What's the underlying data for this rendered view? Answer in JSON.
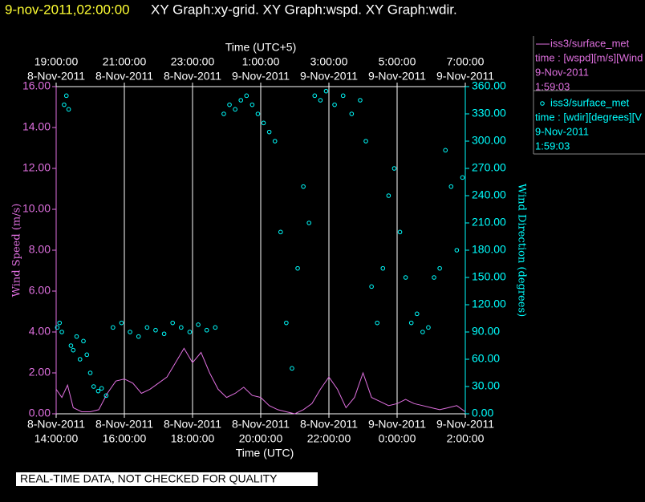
{
  "header": {
    "timestamp": "9-nov-2011,02:00:00",
    "title": "XY Graph:xy-grid.  XY Graph:wspd.  XY Graph:wdir."
  },
  "footer": "REAL-TIME DATA, NOT CHECKED FOR QUALITY",
  "chart_data": {
    "type": "line-scatter",
    "xlabel": "Time (UTC)",
    "x2label": "Time (UTC+5)",
    "ylabel": "Wind Speed (m/s)",
    "y2label": "Wind Direction (degrees)",
    "xlim": [
      "2011-11-08T14:00",
      "2011-11-09T02:00"
    ],
    "xticks": [
      {
        "value": "2011-11-08T14:00",
        "label": [
          "8-Nov-2011",
          "14:00:00"
        ]
      },
      {
        "value": "2011-11-08T16:00",
        "label": [
          "8-Nov-2011",
          "16:00:00"
        ]
      },
      {
        "value": "2011-11-08T18:00",
        "label": [
          "8-Nov-2011",
          "18:00:00"
        ]
      },
      {
        "value": "2011-11-08T20:00",
        "label": [
          "8-Nov-2011",
          "20:00:00"
        ]
      },
      {
        "value": "2011-11-08T22:00",
        "label": [
          "8-Nov-2011",
          "22:00:00"
        ]
      },
      {
        "value": "2011-11-09T00:00",
        "label": [
          "9-Nov-2011",
          "0:00:00"
        ]
      },
      {
        "value": "2011-11-09T02:00",
        "label": [
          "9-Nov-2011",
          "2:00:00"
        ]
      }
    ],
    "x2ticks": [
      {
        "value": "2011-11-08T14:00",
        "label": [
          "19:00:00",
          "8-Nov-2011"
        ]
      },
      {
        "value": "2011-11-08T16:00",
        "label": [
          "21:00:00",
          "8-Nov-2011"
        ]
      },
      {
        "value": "2011-11-08T18:00",
        "label": [
          "23:00:00",
          "8-Nov-2011"
        ]
      },
      {
        "value": "2011-11-08T20:00",
        "label": [
          "1:00:00",
          "9-Nov-2011"
        ]
      },
      {
        "value": "2011-11-08T22:00",
        "label": [
          "3:00:00",
          "9-Nov-2011"
        ]
      },
      {
        "value": "2011-11-09T00:00",
        "label": [
          "5:00:00",
          "9-Nov-2011"
        ]
      },
      {
        "value": "2011-11-09T02:00",
        "label": [
          "7:00:00",
          "9-Nov-2011"
        ]
      }
    ],
    "ylim": [
      0,
      16
    ],
    "yticks": [
      {
        "value": 0,
        "label": "0.00"
      },
      {
        "value": 2,
        "label": "2.00"
      },
      {
        "value": 4,
        "label": "4.00"
      },
      {
        "value": 6,
        "label": "6.00"
      },
      {
        "value": 8,
        "label": "8.00"
      },
      {
        "value": 10,
        "label": "10.00"
      },
      {
        "value": 12,
        "label": "12.00"
      },
      {
        "value": 14,
        "label": "14.00"
      },
      {
        "value": 16,
        "label": "16.00"
      }
    ],
    "y2lim": [
      0,
      360
    ],
    "y2ticks": [
      {
        "value": 0,
        "label": "0.00"
      },
      {
        "value": 30,
        "label": "30.00"
      },
      {
        "value": 60,
        "label": "60.00"
      },
      {
        "value": 90,
        "label": "90.00"
      },
      {
        "value": 120,
        "label": "120.00"
      },
      {
        "value": 150,
        "label": "150.00"
      },
      {
        "value": 180,
        "label": "180.00"
      },
      {
        "value": 210,
        "label": "210.00"
      },
      {
        "value": 240,
        "label": "240.00"
      },
      {
        "value": 270,
        "label": "270.00"
      },
      {
        "value": 300,
        "label": "300.00"
      },
      {
        "value": 330,
        "label": "330.00"
      },
      {
        "value": 360,
        "label": "360.00"
      }
    ],
    "series": [
      {
        "name": "iss3/surface_met",
        "legend_lines": [
          "time : [wspd][m/s][Wind",
          "9-Nov-2011",
          "1:59:03"
        ],
        "color": "#e070e0",
        "style": "line",
        "x": [
          "2011-11-08T14:00",
          "2011-11-08T14:10",
          "2011-11-08T14:20",
          "2011-11-08T14:30",
          "2011-11-08T14:45",
          "2011-11-08T15:00",
          "2011-11-08T15:15",
          "2011-11-08T15:30",
          "2011-11-08T15:45",
          "2011-11-08T16:00",
          "2011-11-08T16:15",
          "2011-11-08T16:30",
          "2011-11-08T16:45",
          "2011-11-08T17:00",
          "2011-11-08T17:15",
          "2011-11-08T17:30",
          "2011-11-08T17:45",
          "2011-11-08T18:00",
          "2011-11-08T18:15",
          "2011-11-08T18:30",
          "2011-11-08T18:45",
          "2011-11-08T19:00",
          "2011-11-08T19:15",
          "2011-11-08T19:30",
          "2011-11-08T19:45",
          "2011-11-08T20:00",
          "2011-11-08T20:15",
          "2011-11-08T20:30",
          "2011-11-08T20:45",
          "2011-11-08T21:00",
          "2011-11-08T21:15",
          "2011-11-08T21:30",
          "2011-11-08T21:45",
          "2011-11-08T22:00",
          "2011-11-08T22:15",
          "2011-11-08T22:30",
          "2011-11-08T22:45",
          "2011-11-08T23:00",
          "2011-11-08T23:15",
          "2011-11-08T23:30",
          "2011-11-08T23:45",
          "2011-11-09T00:00",
          "2011-11-09T00:15",
          "2011-11-09T00:30",
          "2011-11-09T00:45",
          "2011-11-09T01:00",
          "2011-11-09T01:15",
          "2011-11-09T01:30",
          "2011-11-09T01:45",
          "2011-11-09T02:00"
        ],
        "values": [
          1.2,
          0.8,
          1.4,
          0.3,
          0.1,
          0.1,
          0.2,
          1.0,
          1.6,
          1.7,
          1.5,
          1.0,
          1.2,
          1.5,
          1.8,
          2.5,
          3.2,
          2.5,
          3.0,
          2.0,
          1.2,
          0.8,
          1.0,
          1.3,
          0.9,
          0.8,
          0.4,
          0.2,
          0.1,
          0.0,
          0.2,
          0.5,
          1.2,
          1.8,
          1.2,
          0.3,
          0.8,
          2.0,
          0.8,
          0.6,
          0.4,
          0.5,
          0.7,
          0.5,
          0.4,
          0.3,
          0.2,
          0.3,
          0.4,
          0.1
        ]
      },
      {
        "name": "iss3/surface_met",
        "legend_lines": [
          "time : [wdir][degrees][V",
          "9-Nov-2011",
          "1:59:03"
        ],
        "color": "#00ffff",
        "style": "scatter",
        "x": [
          "2011-11-08T14:02",
          "2011-11-08T14:06",
          "2011-11-08T14:10",
          "2011-11-08T14:14",
          "2011-11-08T14:18",
          "2011-11-08T14:22",
          "2011-11-08T14:26",
          "2011-11-08T14:30",
          "2011-11-08T14:36",
          "2011-11-08T14:42",
          "2011-11-08T14:48",
          "2011-11-08T14:54",
          "2011-11-08T15:00",
          "2011-11-08T15:06",
          "2011-11-08T15:14",
          "2011-11-08T15:20",
          "2011-11-08T15:28",
          "2011-11-08T15:40",
          "2011-11-08T15:55",
          "2011-11-08T16:10",
          "2011-11-08T16:25",
          "2011-11-08T16:40",
          "2011-11-08T16:55",
          "2011-11-08T17:10",
          "2011-11-08T17:25",
          "2011-11-08T17:40",
          "2011-11-08T17:55",
          "2011-11-08T18:10",
          "2011-11-08T18:25",
          "2011-11-08T18:40",
          "2011-11-08T18:55",
          "2011-11-08T19:05",
          "2011-11-08T19:15",
          "2011-11-08T19:25",
          "2011-11-08T19:35",
          "2011-11-08T19:45",
          "2011-11-08T19:55",
          "2011-11-08T20:05",
          "2011-11-08T20:15",
          "2011-11-08T20:25",
          "2011-11-08T20:35",
          "2011-11-08T20:45",
          "2011-11-08T20:55",
          "2011-11-08T21:05",
          "2011-11-08T21:15",
          "2011-11-08T21:25",
          "2011-11-08T21:35",
          "2011-11-08T21:45",
          "2011-11-08T21:55",
          "2011-11-08T22:10",
          "2011-11-08T22:25",
          "2011-11-08T22:40",
          "2011-11-08T22:55",
          "2011-11-08T23:05",
          "2011-11-08T23:15",
          "2011-11-08T23:25",
          "2011-11-08T23:35",
          "2011-11-08T23:45",
          "2011-11-08T23:55",
          "2011-11-09T00:05",
          "2011-11-09T00:15",
          "2011-11-09T00:25",
          "2011-11-09T00:35",
          "2011-11-09T00:45",
          "2011-11-09T00:55",
          "2011-11-09T01:05",
          "2011-11-09T01:15",
          "2011-11-09T01:25",
          "2011-11-09T01:35",
          "2011-11-09T01:45",
          "2011-11-09T01:55"
        ],
        "values": [
          95,
          100,
          90,
          340,
          350,
          335,
          75,
          70,
          85,
          60,
          80,
          65,
          45,
          30,
          25,
          28,
          20,
          95,
          100,
          90,
          85,
          95,
          92,
          88,
          100,
          95,
          90,
          98,
          92,
          95,
          330,
          340,
          335,
          345,
          350,
          340,
          330,
          320,
          310,
          300,
          200,
          100,
          50,
          160,
          250,
          210,
          350,
          345,
          355,
          340,
          350,
          330,
          345,
          300,
          140,
          100,
          160,
          240,
          270,
          200,
          150,
          100,
          110,
          90,
          95,
          150,
          160,
          290,
          250,
          180,
          260
        ]
      }
    ]
  }
}
